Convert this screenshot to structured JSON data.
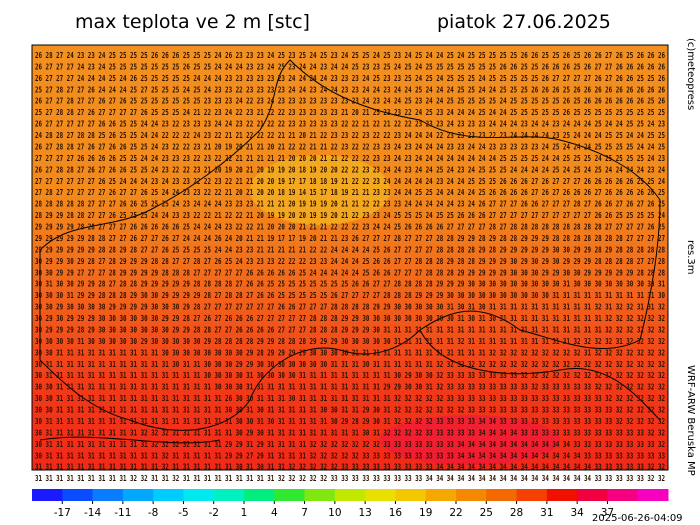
{
  "header": {
    "title": "max teplota ve 2 m [stc]",
    "date": "piatok 27.06.2025"
  },
  "side": {
    "copyright": "(c)meteopress",
    "resolution": "res.3m",
    "model": "WRF-ARW Beruska MP"
  },
  "footer": {
    "timestamp": "2025-06-26-04:09"
  },
  "grid": {
    "rows": [
      "26 28 27 24 23 23 24 25 25 25 25 26 26 26 25 25 25 24 26 23 23 23 24 25 23 25 24 25 23 24 25 25 24 25 23 24 25 24 24 25 24 25 25 25 25 25 26 26 25 25 26 25 26 26 27 26 25 26 26 26",
      "26 27 27 27 24 23 24 25 25 25 25 25 25 25 26 25 25 24 24 24 23 23 24 25 23 24 24 23 24 24 25 23 23 25 24 25 24 25 25 25 25 25 25 25 26 26 25 25 26 26 26 25 26 27 27 26 26 26 26 26",
      "26 27 27 27 24 24 24 25 24 26 25 25 25 25 25 24 24 24 23 23 23 23 23 23 24 24 24 24 23 23 23 24 25 23 23 25 24 25 24 25 25 25 24 25 25 25 25 25 26 27 27 27 27 26 27 26 26 25 25 26",
      "25 27 28 27 27 26 24 24 24 25 27 25 25 25 24 25 24 23 23 22 23 23 23 23 24 24 23 24 24 23 23 24 24 23 24 24 25 24 24 24 25 25 24 24 25 25 25 26 26 26 25 26 26 26 26 26 26 26 26 26",
      "26 27 27 28 27 27 26 27 26 25 25 25 25 25 25 25 23 23 23 24 22 23 24 23 23 23 23 23 23 23 23 24 23 24 24 25 23 24 24 25 25 25 25 25 24 25 25 25 25 25 26 25 26 26 26 26 26 26 25 26",
      "25 27 28 28 27 26 27 27 27 27 26 25 25 25 24 21 22 23 24 22 23 21 22 22 23 23 23 23 23 21 20 21 25 23 23 22 24 25 23 24 24 24 25 24 24 25 25 25 25 25 26 25 25 25 25 25 25 25 25 25",
      "26 27 27 27 27 27 26 26 25 25 24 24 23 22 23 23 23 24 24 23 22 21 22 22 23 23 23 23 23 22 22 21 22 21 22 22 23 23 23 24 23 23 23 24 24 24 23 24 24 23 24 24 24 25 24 24 25 25 24 23",
      "24 28 28 27 28 28 25 26 25 25 24 24 22 22 22 24 23 22 21 21 22 22 22 21 21 20 21 22 23 23 22 23 22 22 23 24 24 24 22 23 23 23 23 22 23 24 24 24 24 23 25 24 24 24 25 25 24 24 25 25",
      "26 27 28 28 27 26 27 26 26 25 25 24 23 22 22 23 21 20 19 20 21 21 20 21 22 22 21 21 22 23 22 22 23 23 24 23 24 24 24 23 23 24 24 23 23 23 23 23 24 25 24 24 24 25 25 25 25 24 24 25",
      "27 27 27 27 26 26 26 26 25 25 24 24 23 23 23 22 23 22 22 21 21 21 21 21 20 20 20 21 21 22 22 22 23 23 24 23 24 24 24 24 24 24 24 24 25 25 25 25 24 24 25 25 25 24 25 25 25 25 24 23",
      "26 27 28 28 27 26 27 26 26 25 25 24 23 22 22 23 21 20 19 20 21 20 19 19 20 18 19 20 20 22 22 23 23 24 24 23 24 24 25 24 23 24 25 25 25 24 24 24 24 25 24 25 24 25 24 24 24 24 23 24",
      "27 27 27 27 27 27 26 25 24 24 24 23 24 23 23 22 22 23 22 21 21 20 20 19 17 17 18 18 19 21 22 22 23 24 24 24 24 24 23 24 24 25 25 25 26 26 26 27 26 27 27 27 26 26 26 26 26 25 25 24",
      "27 28 27 27 27 27 27 26 27 27 26 25 24 24 23 23 22 22 21 20 21 20 20 18 19 14 15 17 18 19 21 21 23 23 24 24 25 25 24 24 24 24 25 26 26 26 26 27 26 27 26 26 26 27 26 26 26 26 26 25",
      "28 28 28 28 28 27 27 27 26 26 25 25 25 24 23 24 24 24 23 23 23 21 21 21 20 19 19 19 20 21 21 22 22 23 23 24 24 24 24 24 23 24 26 27 27 27 26 26 27 27 27 28 27 26 26 27 26 27 26 25",
      "28 29 29 28 28 27 27 26 25 25 25 24 24 23 23 22 22 21 22 22 21 20 19 19 20 20 19 19 20 21 22 23 23 24 25 25 25 24 25 25 26 26 26 27 27 27 27 27 27 27 27 27 27 26 26 25 25 25 25 24",
      "29 29 29 29 28 28 27 27 27 26 26 26 26 26 25 24 24 24 23 22 22 21 20 20 20 21 21 21 22 22 22 23 24 24 25 26 26 26 26 27 27 27 27 28 27 28 28 28 28 28 28 28 28 28 27 27 27 27 26 25",
      "29 29 29 29 29 28 28 27 27 26 27 27 26 27 24 24 24 26 24 20 21 21 19 17 17 19 20 21 21 23 26 27 27 27 28 27 27 27 28 28 29 29 28 29 28 28 29 29 29 28 28 28 28 28 28 28 27 27 27 27",
      "29 29 29 29 29 29 28 28 29 28 27 27 26 25 25 25 25 24 24 23 23 21 21 21 21 21 22 22 24 24 24 24 25 26 27 27 27 27 28 28 28 28 29 28 29 29 29 29 29 30 30 29 29 28 29 28 28 28 28 28",
      "30 29 29 30 29 28 27 28 29 29 29 28 28 27 27 28 27 26 25 24 23 23 23 22 22 22 23 23 24 24 24 25 26 26 27 27 28 28 28 29 28 28 29 29 29 30 29 30 29 30 29 29 29 28 28 28 28 27 27 28",
      "30 30 29 29 27 27 27 28 29 29 29 29 28 28 28 27 27 27 27 27 26 26 26 26 26 25 24 24 24 24 24 25 26 26 27 27 27 28 28 28 29 29 29 29 29 30 30 30 29 29 30 30 29 29 29 29 29 28 28 28",
      "30 31 30 30 29 29 28 27 28 28 29 29 29 29 29 28 28 28 28 27 26 26 25 25 25 25 25 25 25 25 26 26 27 27 28 28 28 28 29 29 29 30 30 30 30 30 30 30 30 30 31 30 30 30 30 30 30 30 30 31",
      "30 30 30 31 29 29 28 28 28 29 30 30 29 29 29 29 28 27 28 28 27 26 26 25 25 25 25 25 26 27 27 27 27 28 28 28 29 29 29 30 30 30 30 30 30 30 30 30 30 31 31 31 31 31 31 31 31 31 31 30",
      "30 30 29 30 30 30 30 29 29 29 29 30 30 30 29 28 27 27 27 27 27 27 27 26 26 27 27 27 28 28 28 28 29 29 30 30 30 30 30 31 30 31 30 31 31 31 31 31 31 31 31 31 31 32 31 32 32 31 31 32",
      "30 29 30 29 29 29 30 30 30 30 30 30 29 29 28 27 26 27 26 26 26 27 27 27 27 27 28 28 28 29 29 30 30 30 30 30 30 30 30 30 31 30 31 30 31 31 31 31 31 31 31 31 31 31 32 32 32 32 32 32",
      "30 29 29 29 28 29 30 30 30 30 30 30 30 29 29 28 28 27 27 26 26 26 26 27 27 27 28 28 28 29 29 29 30 31 31 31 31 31 31 31 31 31 31 31 31 31 31 31 31 31 31 31 31 31 32 32 32 32 32 32",
      "30 30 30 30 31 30 30 30 30 30 29 30 30 30 30 30 29 28 28 28 28 29 29 28 28 28 29 29 29 30 30 30 30 30 31 31 31 31 31 31 32 31 31 31 31 31 31 31 31 31 31 32 32 32 32 31 32 32 32 32",
      "30 30 31 31 31 31 31 31 31 31 31 31 30 30 30 30 30 30 30 30 29 28 29 29 29 29 30 30 30 30 31 31 31 31 31 31 31 31 31 31 31 31 31 32 32 32 32 32 32 32 32 32 31 32 32 32 32 32 32 32",
      "30 31 31 31 31 31 31 31 31 31 31 31 31 30 31 31 30 30 30 29 29 30 30 30 30 30 30 30 31 31 31 30 31 31 31 31 31 31 32 32 32 32 32 32 32 32 32 32 32 32 32 32 32 32 32 32 32 32 32 32",
      "30 31 31 31 31 31 31 31 31 31 31 31 31 31 31 31 30 30 30 30 31 30 30 30 30 31 31 31 31 31 31 31 31 31 30 29 30 30 32 33 33 33 33 33 33 33 32 32 32 32 32 32 32 32 32 32 32 32 32 32",
      "30 30 31 31 31 31 31 31 31 31 31 31 31 31 31 31 31 30 30 30 31 31 31 31 31 31 31 31 31 31 31 31 31 29 29 30 30 31 32 33 33 33 33 33 33 33 33 32 33 33 33 33 33 32 32 32 32 32 32 32",
      "30 30 31 31 31 31 31 31 31 31 31 31 31 31 31 31 31 31 26 30 30 31 31 31 30 31 31 31 31 31 31 31 31 31 32 32 32 32 32 33 33 33 33 33 33 33 33 33 33 33 33 33 33 33 32 32 32 32 32 32",
      "30 30 31 31 31 31 31 31 31 31 31 31 31 31 31 31 31 31 30 30 31 30 31 31 31 31 31 30 30 31 31 29 30 31 32 32 32 32 32 32 32 33 33 33 33 33 33 33 33 33 33 33 33 33 33 32 32 32 32 32",
      "30 31 31 31 31 31 31 31 31 31 31 31 31 31 31 31 31 31 31 30 30 31 30 31 31 31 31 31 30 29 28 29 30 31 32 32 32 32 33 33 33 33 34 34 33 33 33 33 33 33 33 33 33 33 33 32 32 32 32 32",
      "30 31 31 31 31 31 31 31 31 31 32 32 32 31 31 31 31 31 31 30 29 30 31 31 31 31 31 31 31 31 31 30 31 32 32 32 32 33 33 33 33 33 34 34 34 34 33 33 33 33 33 33 33 33 33 33 33 33 32 32",
      "30 31 31 31 31 31 31 31 31 31 31 32 32 32 32 31 31 31 29 29 31 29 31 31 31 31 32 32 32 32 32 32 32 33 33 33 33 33 33 33 34 34 34 34 34 34 34 34 34 34 34 33 33 33 33 33 33 33 33 32",
      "30 31 31 31 31 31 31 31 31 31 31 31 32 31 31 31 31 31 29 29 27 29 31 31 31 31 32 32 32 32 32 33 33 33 33 33 33 33 33 33 34 34 34 34 34 34 34 34 34 34 34 34 33 33 33 33 33 33 33 33",
      "31 31 31 31 31 31 31 31 31 31 31 31 32 31 31 31 31 31 31 30 31 30 31 31 32 32 32 32 32 33 33 33 33 33 33 33 33 33 34 34 34 34 34 34 34 34 34 34 34 34 34 34 34 33 33 33 33 33 32 32",
      "31 31 31 31 31 31 31 31 31 32 32 31 31 32 31 31 31 31 31 31 31 31 31 32 32 32 32 32 33 33 33 33 33 33 33 33 33 34 34 34 34 34 34 34 34 34 34 34 34 34 34 34 34 33 33 33 33 33 32 32"
    ]
  },
  "colorbar": {
    "labels": [
      -17,
      -14,
      -11,
      -8,
      -5,
      -2,
      1,
      4,
      7,
      10,
      13,
      16,
      19,
      22,
      25,
      28,
      31,
      34,
      37
    ],
    "colors": [
      "#1a1aff",
      "#0a4cff",
      "#0a7cff",
      "#00a8ff",
      "#00ccff",
      "#00e8f0",
      "#00f0c0",
      "#00ee80",
      "#30e830",
      "#80e810",
      "#c0e800",
      "#e8e000",
      "#f4c800",
      "#f4a800",
      "#f48800",
      "#f46800",
      "#f44000",
      "#f01000",
      "#f00040",
      "#f40080",
      "#f800c0"
    ]
  }
}
